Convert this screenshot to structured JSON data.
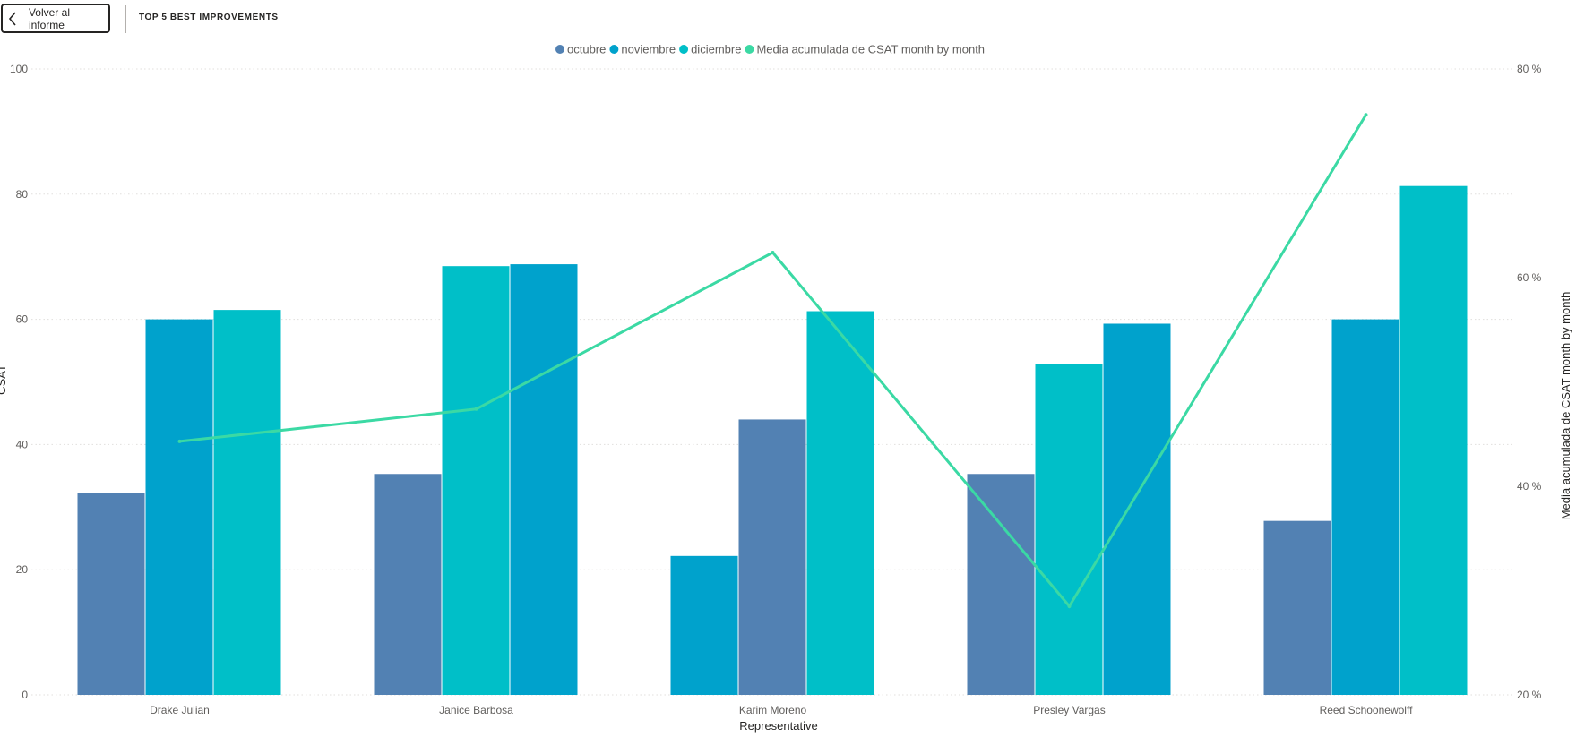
{
  "header": {
    "back_label": "Volver al informe",
    "title": "TOP 5 BEST IMPROVEMENTS"
  },
  "icons": {
    "back": "chevron-left-icon"
  },
  "colors": {
    "octubre": "#5281B3",
    "noviembre": "#00A2CC",
    "diciembre": "#00BFC8",
    "line": "#3BD9A4",
    "gridline": "#E1DFDD",
    "axis_text": "#605E5C"
  },
  "chart_data": {
    "type": "bar",
    "title": "",
    "xlabel": "Representative",
    "ylabel": "CSAT",
    "y2label": "Media acumulada de CSAT month by month",
    "categories": [
      "Drake Julian",
      "Janice Barbosa",
      "Karim Moreno",
      "Presley Vargas",
      "Reed Schoonewolff"
    ],
    "ylim": [
      0,
      100
    ],
    "yticks": [
      0,
      20,
      40,
      60,
      80,
      100
    ],
    "y2lim": [
      0.2,
      0.8
    ],
    "y2ticks": [
      "20 %",
      "40 %",
      "60 %",
      "80 %"
    ],
    "y2tick_values": [
      0.2,
      0.4,
      0.6,
      0.8
    ],
    "legend_position": "top-center",
    "grid": true,
    "series": [
      {
        "name": "octubre",
        "values": [
          32.3,
          35.3,
          44.0,
          35.3,
          27.8
        ]
      },
      {
        "name": "noviembre",
        "values": [
          60.0,
          68.8,
          22.2,
          59.3,
          60.0
        ]
      },
      {
        "name": "diciembre",
        "values": [
          61.5,
          68.5,
          61.3,
          52.8,
          81.3
        ]
      }
    ],
    "bar_order": [
      [
        "octubre",
        "noviembre",
        "diciembre"
      ],
      [
        "octubre",
        "diciembre",
        "noviembre"
      ],
      [
        "noviembre",
        "octubre",
        "diciembre"
      ],
      [
        "octubre",
        "diciembre",
        "noviembre"
      ],
      [
        "octubre",
        "noviembre",
        "diciembre"
      ]
    ],
    "line_series": {
      "name": "Media acumulada de CSAT month by month",
      "axis": "secondary",
      "values": [
        0.443,
        0.474,
        0.624,
        0.285,
        0.756
      ]
    }
  }
}
